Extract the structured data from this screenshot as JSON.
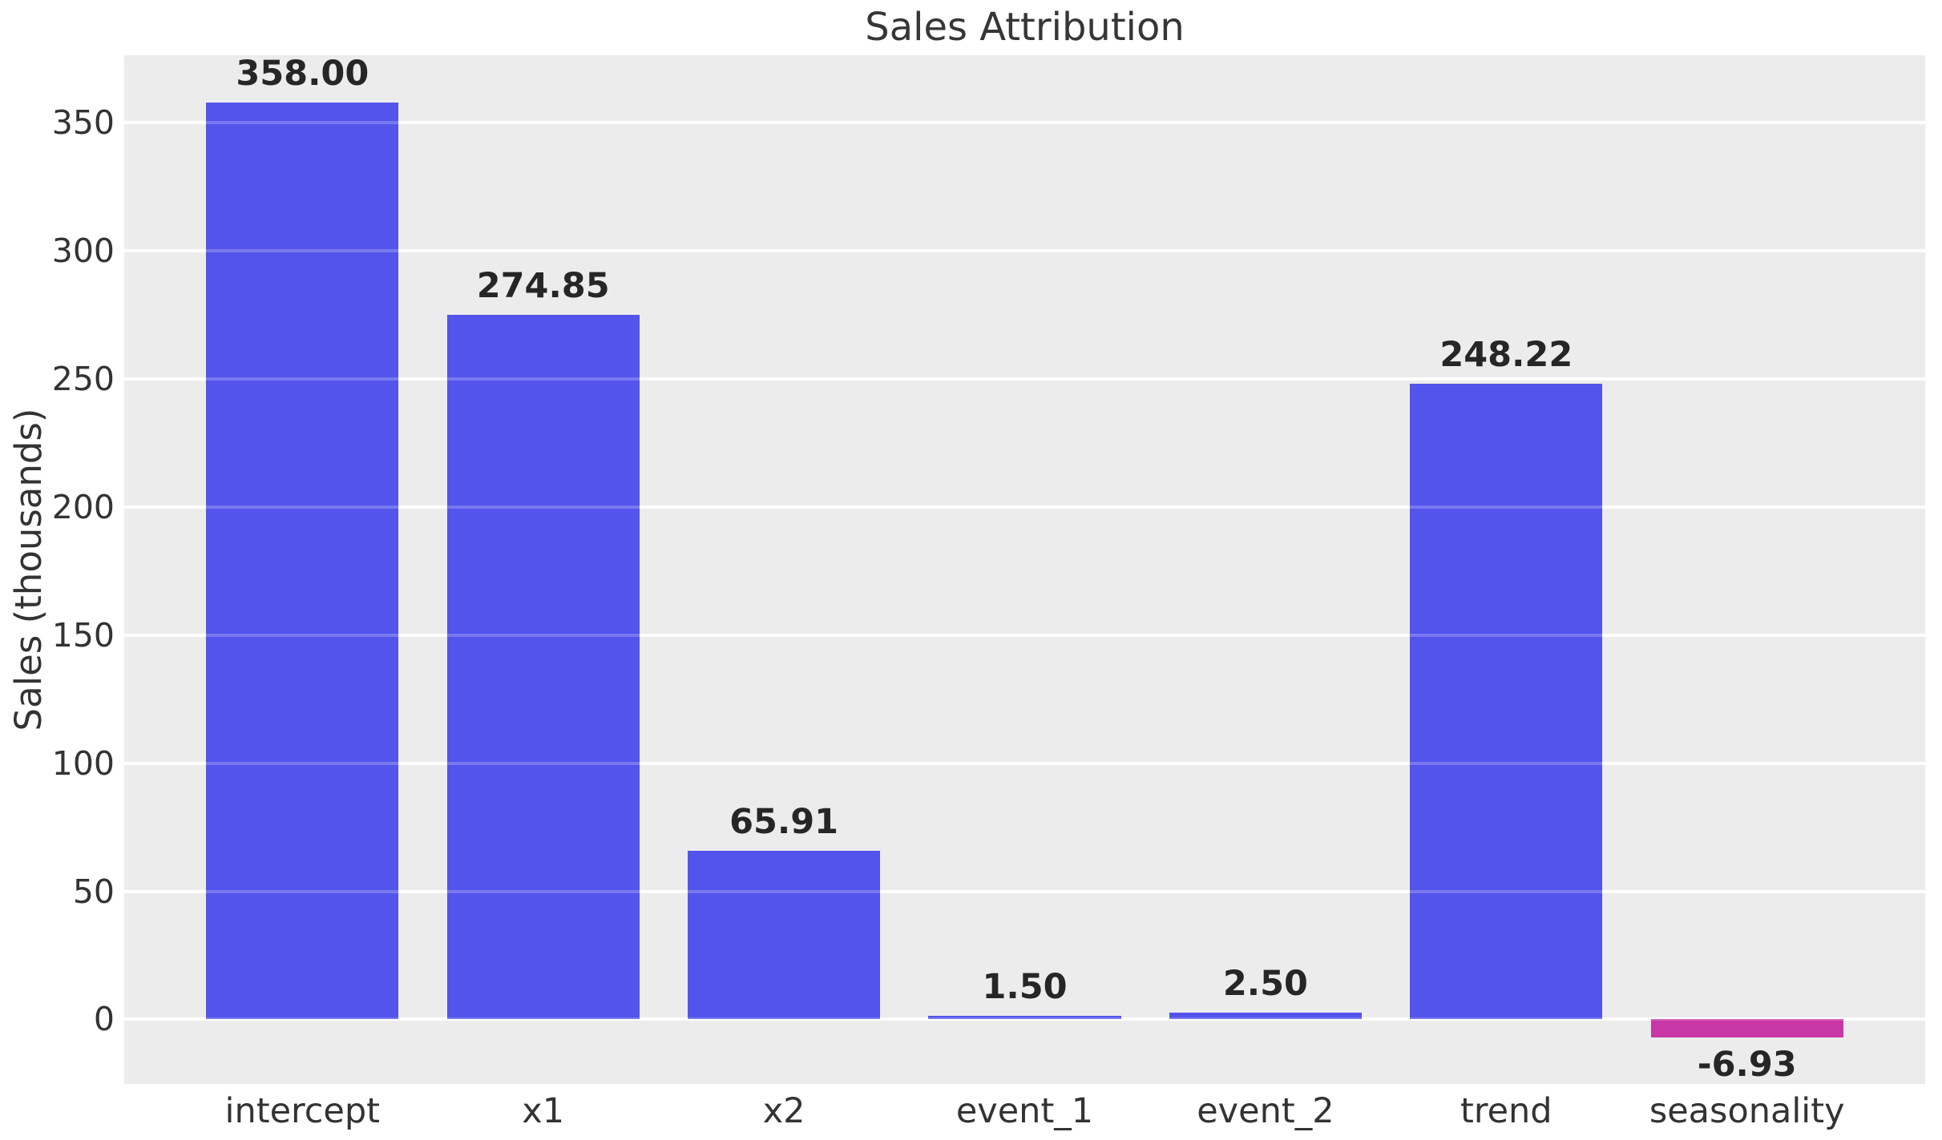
{
  "chart_data": {
    "type": "bar",
    "title": "Sales Attribution",
    "xlabel": "",
    "ylabel": "Sales (thousands)",
    "categories": [
      "intercept",
      "x1",
      "x2",
      "event_1",
      "event_2",
      "trend",
      "seasonality"
    ],
    "values": [
      358.0,
      274.85,
      65.91,
      1.5,
      2.5,
      248.22,
      -6.93
    ],
    "value_labels": [
      "358.00",
      "274.85",
      "65.91",
      "1.50",
      "2.50",
      "248.22",
      "-6.93"
    ],
    "bar_colors": [
      "#5254eb",
      "#5254eb",
      "#5254eb",
      "#5254eb",
      "#5254eb",
      "#5254eb",
      "#c837a5"
    ],
    "positive_color": "#5254eb",
    "negative_color": "#c837a5",
    "yticks": [
      0,
      50,
      100,
      150,
      200,
      250,
      300,
      350
    ],
    "ylim": [
      -25.2,
      376.3
    ],
    "xlim": [
      -0.74,
      6.74
    ],
    "bar_width": 0.8,
    "grid": true,
    "legend": false,
    "plot_bg_color": "#ececec",
    "grid_color": "#ffffff",
    "figure_bg_color": "#ffffff",
    "tick_color": "#333333",
    "value_label_color": "#262626"
  }
}
